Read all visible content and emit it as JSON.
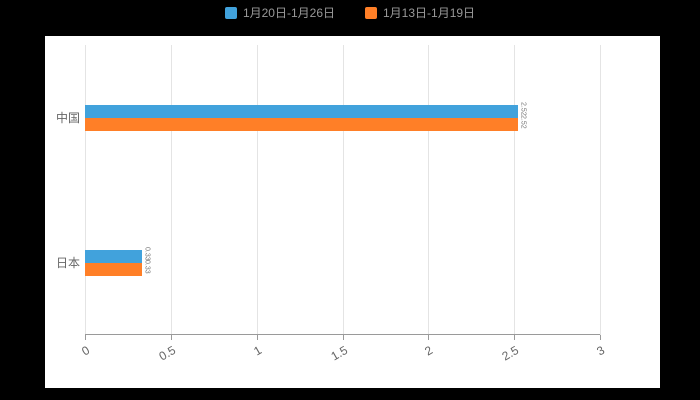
{
  "colors": {
    "page_background": "#000000",
    "panel_background": "#ffffff",
    "grid_line": "#e4e4e4",
    "axis_line": "#9a9a9a",
    "tick_text": "#666666",
    "category_text": "#666666",
    "legend_text": "#999999"
  },
  "chart_data": {
    "type": "bar",
    "orientation": "horizontal",
    "title": "",
    "categories": [
      "中国",
      "日本"
    ],
    "series": [
      {
        "name": "1月20日-1月26日",
        "color": "#41A2DC",
        "values": [
          2.52,
          0.33
        ]
      },
      {
        "name": "1月13日-1月19日",
        "color": "#FF7F27",
        "values": [
          2.52,
          0.33
        ]
      }
    ],
    "xlim": [
      0,
      3
    ],
    "xticks": [
      0,
      0.5,
      1,
      1.5,
      2,
      2.5,
      3
    ],
    "xtick_labels": [
      "0",
      "0.5",
      "1",
      "1.5",
      "2",
      "2.5",
      "3"
    ],
    "grid": true,
    "legend_position": "top",
    "value_labels_rotated": true
  }
}
